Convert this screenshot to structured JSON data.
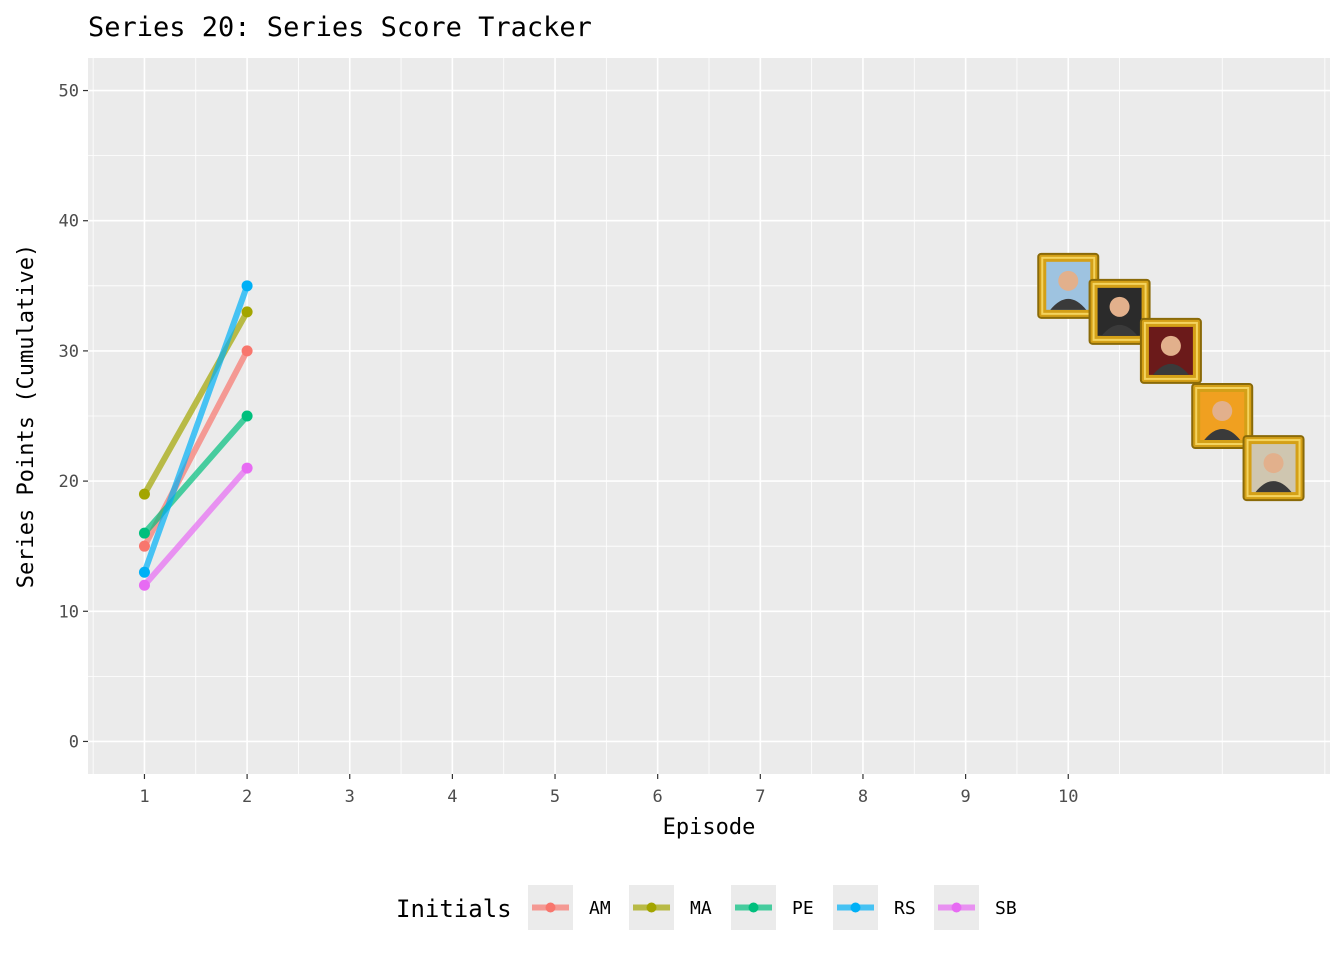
{
  "chart_data": {
    "type": "line",
    "title": "Series 20: Series Score Tracker",
    "xlabel": "Episode",
    "ylabel": "Series Points (Cumulative)",
    "x_ticks": [
      1,
      2,
      3,
      4,
      5,
      6,
      7,
      8,
      9,
      10
    ],
    "y_ticks": [
      0,
      10,
      20,
      30,
      40,
      50
    ],
    "xlim": [
      0.45,
      12.55
    ],
    "ylim": [
      -2.5,
      52.5
    ],
    "grid": true,
    "legend": {
      "title": "Initials",
      "position": "bottom"
    },
    "series": [
      {
        "name": "AM",
        "color": "#F8766D",
        "x": [
          1,
          2
        ],
        "y": [
          15,
          30
        ]
      },
      {
        "name": "MA",
        "color": "#A3A500",
        "x": [
          1,
          2
        ],
        "y": [
          19,
          33
        ]
      },
      {
        "name": "PE",
        "color": "#00BF7D",
        "x": [
          1,
          2
        ],
        "y": [
          16,
          25
        ]
      },
      {
        "name": "RS",
        "color": "#00B0F6",
        "x": [
          1,
          2
        ],
        "y": [
          13,
          35
        ]
      },
      {
        "name": "SB",
        "color": "#E76BF3",
        "x": [
          1,
          2
        ],
        "y": [
          12,
          21
        ]
      }
    ],
    "portraits": [
      {
        "x": 10,
        "y": 35,
        "bg": "#9ec3e0"
      },
      {
        "x": 10.5,
        "y": 33,
        "bg": "#2b2b2b"
      },
      {
        "x": 11,
        "y": 30,
        "bg": "#6b1a1a"
      },
      {
        "x": 11.5,
        "y": 25,
        "bg": "#f0a020"
      },
      {
        "x": 12,
        "y": 21,
        "bg": "#cfc6b0"
      }
    ]
  }
}
